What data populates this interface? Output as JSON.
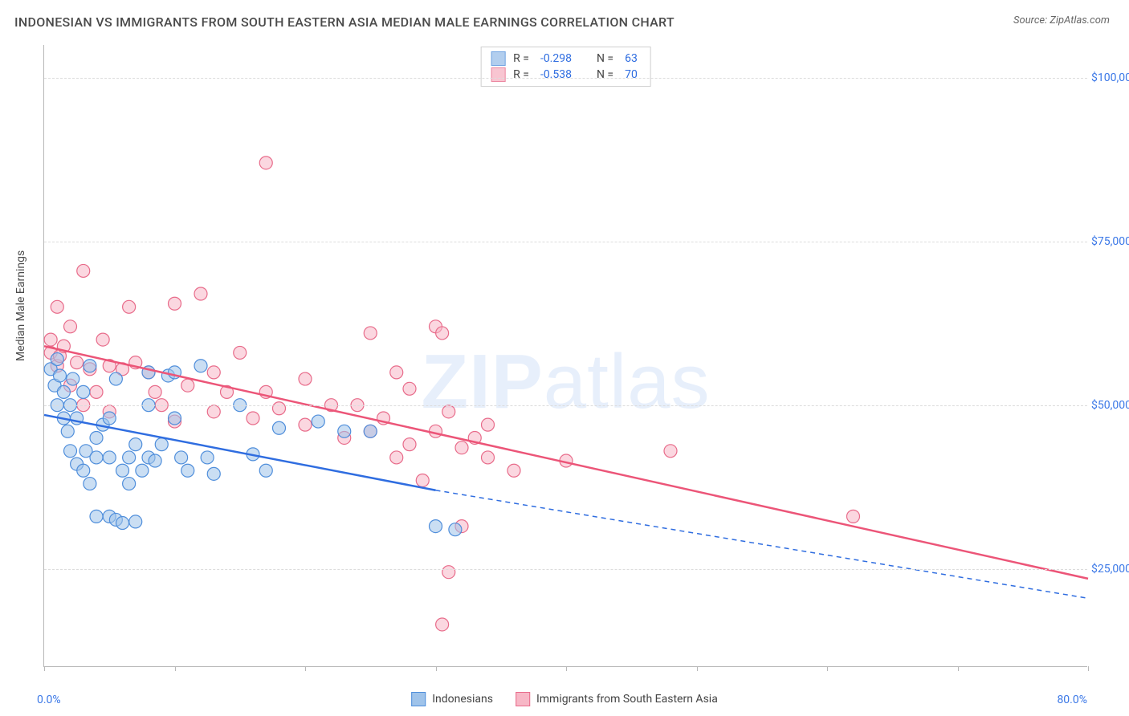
{
  "title": "INDONESIAN VS IMMIGRANTS FROM SOUTH EASTERN ASIA MEDIAN MALE EARNINGS CORRELATION CHART",
  "source": "Source: ZipAtlas.com",
  "watermark": {
    "bold": "ZIP",
    "rest": "atlas"
  },
  "chart": {
    "type": "scatter-with-regression",
    "ylabel": "Median Male Earnings",
    "xlim": [
      0,
      80
    ],
    "ylim": [
      10000,
      105000
    ],
    "xlim_labels": {
      "min": "0.0%",
      "max": "80.0%"
    },
    "xtick_positions": [
      0,
      10,
      20,
      30,
      40,
      50,
      60,
      70,
      80
    ],
    "ytick_values": [
      25000,
      50000,
      75000,
      100000
    ],
    "ytick_labels": [
      "$25,000",
      "$50,000",
      "$75,000",
      "$100,000"
    ],
    "grid_color": "#dcdcdc",
    "axis_color": "#b8b8b8",
    "background_color": "#ffffff",
    "series": [
      {
        "name": "Indonesians",
        "marker_fill": "#9fc3ea",
        "marker_fill_opacity": 0.55,
        "marker_stroke": "#4f8edb",
        "marker_radius": 8,
        "line_color": "#2f6de0",
        "line_width": 2.5,
        "extrapolate_dash": "6,5",
        "R": "-0.298",
        "N": "63",
        "regression": {
          "x1": 0,
          "y1": 48500,
          "x2": 30,
          "y2": 37000,
          "x3": 80,
          "y3": 20500
        },
        "points": [
          [
            0.5,
            55500
          ],
          [
            0.8,
            53000
          ],
          [
            1,
            57000
          ],
          [
            1,
            50000
          ],
          [
            1.2,
            54500
          ],
          [
            1.5,
            48000
          ],
          [
            1.5,
            52000
          ],
          [
            1.8,
            46000
          ],
          [
            2,
            50000
          ],
          [
            2,
            43000
          ],
          [
            2.2,
            54000
          ],
          [
            2.5,
            41000
          ],
          [
            2.5,
            48000
          ],
          [
            3,
            52000
          ],
          [
            3,
            40000
          ],
          [
            3.2,
            43000
          ],
          [
            3.5,
            56000
          ],
          [
            3.5,
            38000
          ],
          [
            4,
            45000
          ],
          [
            4,
            42000
          ],
          [
            4,
            33000
          ],
          [
            4.5,
            47000
          ],
          [
            5,
            33000
          ],
          [
            5,
            42000
          ],
          [
            5,
            48000
          ],
          [
            5.5,
            54000
          ],
          [
            5.5,
            32500
          ],
          [
            6,
            32000
          ],
          [
            6,
            40000
          ],
          [
            6.5,
            42000
          ],
          [
            6.5,
            38000
          ],
          [
            7,
            44000
          ],
          [
            7,
            32200
          ],
          [
            7.5,
            40000
          ],
          [
            8,
            50000
          ],
          [
            8,
            42000
          ],
          [
            8,
            55000
          ],
          [
            8.5,
            41500
          ],
          [
            9,
            44000
          ],
          [
            9.5,
            54500
          ],
          [
            10,
            48000
          ],
          [
            10,
            55000
          ],
          [
            10.5,
            42000
          ],
          [
            11,
            40000
          ],
          [
            12,
            56000
          ],
          [
            12.5,
            42000
          ],
          [
            13,
            39500
          ],
          [
            15,
            50000
          ],
          [
            16,
            42500
          ],
          [
            17,
            40000
          ],
          [
            18,
            46500
          ],
          [
            21,
            47500
          ],
          [
            23,
            46000
          ],
          [
            25,
            46000
          ],
          [
            30,
            31500
          ],
          [
            31.5,
            31000
          ]
        ]
      },
      {
        "name": "Immigrants from South Eastern Asia",
        "marker_fill": "#f7b7c6",
        "marker_fill_opacity": 0.55,
        "marker_stroke": "#e86b8a",
        "marker_radius": 8,
        "line_color": "#ec5578",
        "line_width": 2.5,
        "R": "-0.538",
        "N": "70",
        "regression": {
          "x1": 0,
          "y1": 59000,
          "x2": 80,
          "y2": 23500
        },
        "points": [
          [
            0.5,
            60000
          ],
          [
            0.5,
            58000
          ],
          [
            1,
            65000
          ],
          [
            1,
            56000
          ],
          [
            1.2,
            57500
          ],
          [
            1.5,
            59000
          ],
          [
            2,
            53000
          ],
          [
            2,
            62000
          ],
          [
            2.5,
            56500
          ],
          [
            3,
            70500
          ],
          [
            3,
            50000
          ],
          [
            3.5,
            55500
          ],
          [
            4,
            52000
          ],
          [
            4.5,
            60000
          ],
          [
            5,
            49000
          ],
          [
            5,
            56000
          ],
          [
            6,
            55500
          ],
          [
            6.5,
            65000
          ],
          [
            7,
            56500
          ],
          [
            8,
            55000
          ],
          [
            8.5,
            52000
          ],
          [
            9,
            50000
          ],
          [
            10,
            65500
          ],
          [
            10,
            47500
          ],
          [
            11,
            53000
          ],
          [
            12,
            67000
          ],
          [
            13,
            55000
          ],
          [
            13,
            49000
          ],
          [
            14,
            52000
          ],
          [
            15,
            58000
          ],
          [
            16,
            48000
          ],
          [
            17,
            87000
          ],
          [
            17,
            52000
          ],
          [
            18,
            49500
          ],
          [
            20,
            47000
          ],
          [
            20,
            54000
          ],
          [
            22,
            50000
          ],
          [
            23,
            45000
          ],
          [
            24,
            50000
          ],
          [
            25,
            46000
          ],
          [
            25,
            61000
          ],
          [
            26,
            48000
          ],
          [
            27,
            55000
          ],
          [
            27,
            42000
          ],
          [
            28,
            52500
          ],
          [
            28,
            44000
          ],
          [
            29,
            38500
          ],
          [
            30,
            62000
          ],
          [
            30,
            46000
          ],
          [
            30.5,
            61000
          ],
          [
            31,
            49000
          ],
          [
            31,
            24500
          ],
          [
            32,
            43500
          ],
          [
            32,
            31500
          ],
          [
            33,
            45000
          ],
          [
            34,
            47000
          ],
          [
            34,
            42000
          ],
          [
            36,
            40000
          ],
          [
            40,
            41500
          ],
          [
            48,
            43000
          ],
          [
            62,
            33000
          ],
          [
            30.5,
            16500
          ]
        ]
      }
    ]
  },
  "legend_top": {
    "r_label": "R =",
    "n_label": "N ="
  },
  "legend_bottom_labels": [
    "Indonesians",
    "Immigrants from South Eastern Asia"
  ]
}
